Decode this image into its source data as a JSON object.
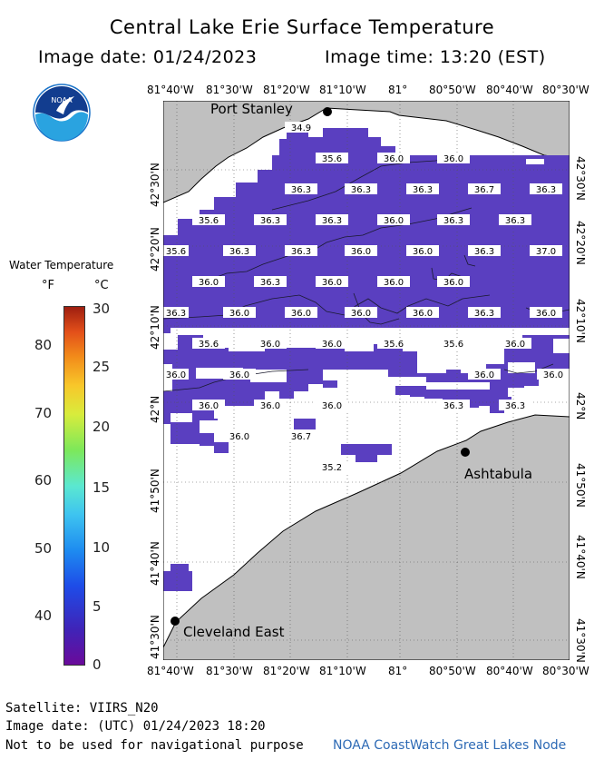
{
  "header": {
    "title": "Central Lake Erie Surface Temperature",
    "image_date": "Image date: 01/24/2023",
    "image_time": "Image time: 13:20 (EST)"
  },
  "logo": {
    "text": "NOAA",
    "icon": "noaa-logo-icon"
  },
  "legend": {
    "title": "Water Temperature",
    "unit_f": "°F",
    "unit_c": "°C",
    "fahrenheit_ticks": [
      "80",
      "70",
      "60",
      "50",
      "40"
    ],
    "celsius_ticks": [
      "30",
      "25",
      "20",
      "15",
      "10",
      "5",
      "0"
    ],
    "colors": [
      "#6a0a9a",
      "#3f24b8",
      "#1e4ce8",
      "#1e8cf0",
      "#3ec4f0",
      "#5be8d0",
      "#7de85a",
      "#d8ec3c",
      "#f8c72a",
      "#f28c1a",
      "#e3501a",
      "#9e1e10"
    ]
  },
  "map": {
    "lon_labels": [
      "81°40'W",
      "81°30'W",
      "81°20'W",
      "81°10'W",
      "81°",
      "80°50'W",
      "80°40'W",
      "80°30'W"
    ],
    "lat_labels": [
      "42°30'N",
      "42°20'N",
      "42°10'N",
      "42°N",
      "41°50'N",
      "41°40'N",
      "41°30'N"
    ],
    "cities": [
      "Port Stanley",
      "Ashtabula",
      "Cleveland East"
    ],
    "land_color": "#c0c0c0",
    "water_color": "#5a3fc0",
    "temperatures": [
      "34.9",
      "35.6",
      "36.0",
      "36.0",
      "36.3",
      "36.3",
      "36.3",
      "36.7",
      "36.3",
      "35.6",
      "36.3",
      "36.3",
      "36.0",
      "36.3",
      "36.3",
      "35.6",
      "36.3",
      "36.3",
      "36.0",
      "36.0",
      "36.3",
      "37.0",
      "36.0",
      "36.3",
      "36.0",
      "36.0",
      "36.0",
      "36.3",
      "36.0",
      "36.0",
      "36.0",
      "36.0",
      "36.3",
      "36.0",
      "35.6",
      "36.0",
      "36.0",
      "35.6",
      "35.6",
      "36.0",
      "36.0",
      "36.0",
      "36.0",
      "36.0",
      "36.0",
      "36.0",
      "36.0",
      "36.3",
      "36.3",
      "36.0",
      "36.7",
      "35.2"
    ]
  },
  "footer": {
    "satellite": "Satellite: VIIRS_N20",
    "utc_date": "Image date: (UTC) 01/24/2023  18:20",
    "disclaimer": "Not to be used for navigational purpose",
    "credit": "NOAA CoastWatch Great Lakes Node"
  }
}
